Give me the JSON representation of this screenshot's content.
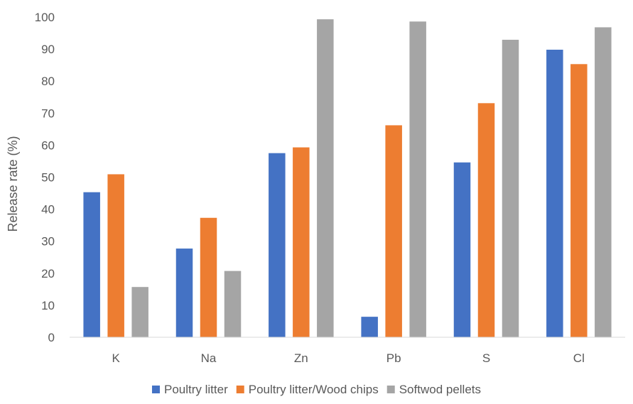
{
  "chart_data": {
    "type": "bar",
    "title": "",
    "xlabel": "",
    "ylabel": "Release rate (%)",
    "ylim": [
      0,
      100
    ],
    "yticks": [
      0,
      10,
      20,
      30,
      40,
      50,
      60,
      70,
      80,
      90,
      100
    ],
    "categories": [
      "K",
      "Na",
      "Zn",
      "Pb",
      "S",
      "Cl"
    ],
    "series": [
      {
        "name": "Poultry litter",
        "color": "#4472C4",
        "values": [
          45.3,
          27.7,
          57.5,
          6.4,
          54.6,
          89.8
        ]
      },
      {
        "name": "Poultry litter/Wood chips",
        "color": "#ED7D31",
        "values": [
          50.9,
          37.3,
          59.3,
          66.2,
          73.1,
          85.3
        ]
      },
      {
        "name": "Softwod pellets",
        "color": "#A5A5A5",
        "values": [
          15.7,
          20.7,
          99.3,
          98.6,
          92.9,
          96.8
        ]
      }
    ],
    "grid": false,
    "legend_position": "bottom"
  }
}
